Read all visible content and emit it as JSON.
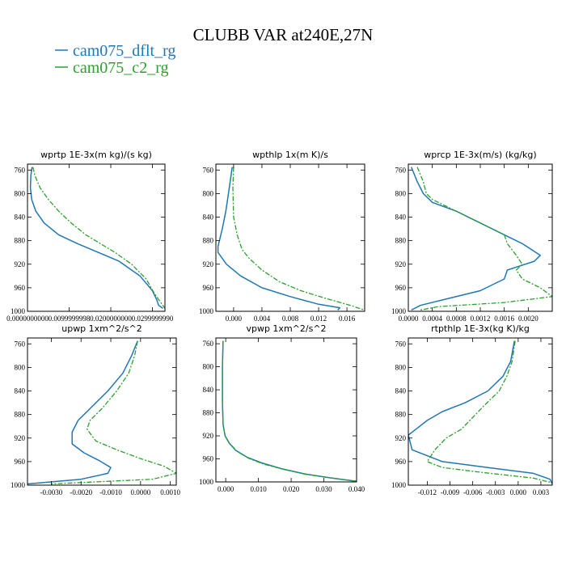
{
  "figure": {
    "title": "CLUBB VAR at240E,27N",
    "legend": [
      {
        "label": "cam075_dflt_rg",
        "color": "#1f77b4",
        "style": "solid"
      },
      {
        "label": "cam075_c2_rg",
        "color": "#2ca02c",
        "style": "dashdot"
      }
    ]
  },
  "chart_data": [
    {
      "type": "line",
      "title": "wprtp  1E-3x(m kg)/(s kg)",
      "xlim": [
        0.0,
        0.033
      ],
      "ylim": [
        1000,
        750
      ],
      "y_inverted": true,
      "xticks": [
        0.0,
        0.0099999998,
        0.02,
        0.029999999
      ],
      "xtick_labels": [
        "0.0000000000",
        "0.0099999998",
        "0.0200000000",
        "0.0299999990"
      ],
      "yticks": [
        760,
        800,
        840,
        880,
        920,
        960,
        1000
      ],
      "series": [
        {
          "name": "cam075_dflt_rg",
          "x": [
            0.0011,
            0.0008,
            0.0007,
            0.001,
            0.002,
            0.004,
            0.0075,
            0.012,
            0.017,
            0.022,
            0.027,
            0.03,
            0.031,
            0.0315,
            0.0325
          ],
          "y": [
            755,
            770,
            790,
            810,
            830,
            850,
            870,
            885,
            900,
            915,
            940,
            965,
            980,
            990,
            995
          ]
        },
        {
          "name": "cam075_c2_rg",
          "x": [
            0.0013,
            0.0018,
            0.003,
            0.005,
            0.0075,
            0.0105,
            0.014,
            0.0175,
            0.021,
            0.025,
            0.0285,
            0.0305,
            0.032,
            0.033
          ],
          "y": [
            755,
            770,
            790,
            810,
            830,
            850,
            870,
            885,
            900,
            920,
            945,
            970,
            985,
            995
          ]
        }
      ]
    },
    {
      "type": "line",
      "title": "wpthlp  1x(m K)/s",
      "xlim": [
        -0.0025,
        0.0185
      ],
      "ylim": [
        1000,
        750
      ],
      "y_inverted": true,
      "xticks": [
        0.0,
        0.004,
        0.008,
        0.012,
        0.016
      ],
      "xtick_labels": [
        "0.000",
        "0.004",
        "0.008",
        "0.012",
        "0.016"
      ],
      "yticks": [
        760,
        800,
        840,
        880,
        920,
        960,
        1000
      ],
      "series": [
        {
          "name": "cam075_dflt_rg",
          "x": [
            -0.0002,
            -0.0006,
            -0.0011,
            -0.0016,
            -0.0022,
            -0.0022,
            -0.001,
            0.001,
            0.004,
            0.008,
            0.012,
            0.015,
            0.0147
          ],
          "y": [
            755,
            790,
            830,
            860,
            890,
            900,
            920,
            940,
            960,
            975,
            988,
            994,
            998
          ]
        },
        {
          "name": "cam075_c2_rg",
          "x": [
            0.0,
            -0.0001,
            0.0,
            0.0005,
            0.0012,
            0.0022,
            0.004,
            0.0065,
            0.0095,
            0.013,
            0.0165,
            0.0185
          ],
          "y": [
            755,
            790,
            840,
            870,
            895,
            910,
            930,
            950,
            965,
            978,
            990,
            998
          ]
        }
      ]
    },
    {
      "type": "line",
      "title": "wprcp  1E-3x(m/s) (kg/kg)",
      "xlim": [
        0.0,
        0.0024
      ],
      "ylim": [
        1000,
        750
      ],
      "y_inverted": true,
      "xticks": [
        0.0,
        0.0004,
        0.0008,
        0.0012,
        0.0016,
        0.002
      ],
      "xtick_labels": [
        "0.0000",
        "0.0004",
        "0.0008",
        "0.0012",
        "0.0016",
        "0.0020"
      ],
      "yticks": [
        760,
        800,
        840,
        880,
        920,
        960,
        1000
      ],
      "series": [
        {
          "name": "cam075_dflt_rg",
          "x": [
            5e-05,
            0.00015,
            0.00025,
            0.0004,
            0.0008,
            0.0012,
            0.0016,
            0.0019,
            0.0022,
            0.0021,
            0.00165,
            0.0016,
            0.0012,
            0.0006,
            0.0002,
            5e-05
          ],
          "y": [
            755,
            780,
            800,
            815,
            830,
            850,
            870,
            885,
            905,
            915,
            930,
            945,
            965,
            980,
            990,
            998
          ]
        },
        {
          "name": "cam075_c2_rg",
          "x": [
            0.00015,
            0.00025,
            0.0003,
            0.0004,
            0.0008,
            0.0013,
            0.0016,
            0.00165,
            0.0018,
            0.0019,
            0.0018,
            0.0019,
            0.0022,
            0.0024,
            0.0016,
            0.0005,
            0.0002
          ],
          "y": [
            755,
            780,
            800,
            810,
            830,
            855,
            870,
            885,
            905,
            920,
            930,
            945,
            960,
            975,
            985,
            992,
            998
          ]
        }
      ]
    },
    {
      "type": "line",
      "title": "upwp  1xm^2/s^2",
      "xlim": [
        -0.0038,
        0.0012
      ],
      "ylim": [
        1000,
        750
      ],
      "y_inverted": true,
      "xticks": [
        -0.003,
        -0.002,
        -0.001,
        0.0,
        0.001
      ],
      "xtick_labels": [
        "-0.0030",
        "-0.0020",
        "-0.0010",
        "0.0000",
        "0.0010"
      ],
      "yticks": [
        760,
        800,
        840,
        880,
        920,
        960,
        1000
      ],
      "series": [
        {
          "name": "cam075_dflt_rg",
          "x": [
            -0.0001,
            -0.0003,
            -0.0006,
            -0.0011,
            -0.0017,
            -0.0021,
            -0.0023,
            -0.0023,
            -0.0019,
            -0.0014,
            -0.001,
            -0.0011,
            -0.002,
            -0.0038
          ],
          "y": [
            755,
            780,
            810,
            840,
            870,
            890,
            910,
            930,
            945,
            958,
            970,
            980,
            990,
            998
          ]
        },
        {
          "name": "cam075_c2_rg",
          "x": [
            -0.0001,
            -0.0002,
            -0.0004,
            -0.0008,
            -0.0013,
            -0.0017,
            -0.0018,
            -0.0015,
            -0.0008,
            0.0,
            0.0008,
            0.0012,
            0.0004,
            -0.003
          ],
          "y": [
            755,
            780,
            810,
            840,
            870,
            890,
            905,
            925,
            940,
            955,
            968,
            980,
            990,
            998
          ]
        }
      ]
    },
    {
      "type": "line",
      "title": "vpwp  1xm^2/s^2",
      "xlim": [
        -0.003,
        0.04
      ],
      "ylim": [
        1000,
        750
      ],
      "y_inverted": true,
      "xticks": [
        0.0,
        0.01,
        0.02,
        0.03,
        0.04
      ],
      "xtick_labels": [
        "0.000",
        "0.010",
        "0.020",
        "0.030",
        "0.040"
      ],
      "yticks": [
        760,
        800,
        840,
        880,
        920,
        960,
        1000
      ],
      "series": [
        {
          "name": "cam075_dflt_rg",
          "x": [
            -0.0008,
            -0.001,
            -0.001,
            -0.0008,
            -0.0002,
            0.001,
            0.003,
            0.0065,
            0.011,
            0.017,
            0.024,
            0.032,
            0.04
          ],
          "y": [
            755,
            800,
            860,
            900,
            920,
            932,
            945,
            957,
            967,
            977,
            986,
            993,
            999
          ]
        },
        {
          "name": "cam075_c2_rg",
          "x": [
            -0.0008,
            -0.001,
            -0.001,
            -0.0008,
            -0.0002,
            0.0012,
            0.0035,
            0.007,
            0.0115,
            0.0175,
            0.0245,
            0.032,
            0.04
          ],
          "y": [
            755,
            800,
            860,
            900,
            920,
            933,
            947,
            959,
            969,
            978,
            987,
            993,
            999
          ]
        }
      ]
    },
    {
      "type": "line",
      "title": "rtpthlp  1E-3x(kg K)/kg",
      "xlim": [
        -0.0145,
        0.0045
      ],
      "ylim": [
        1000,
        750
      ],
      "y_inverted": true,
      "xticks": [
        -0.012,
        -0.009,
        -0.006,
        -0.003,
        0.0,
        0.003
      ],
      "xtick_labels": [
        "-0.012",
        "-0.009",
        "-0.006",
        "-0.003",
        "0.000",
        "0.003"
      ],
      "yticks": [
        760,
        800,
        840,
        880,
        920,
        960,
        1000
      ],
      "series": [
        {
          "name": "cam075_dflt_rg",
          "x": [
            -0.0005,
            -0.001,
            -0.002,
            -0.004,
            -0.007,
            -0.01,
            -0.012,
            -0.013,
            -0.0145,
            -0.014,
            -0.01,
            -0.004,
            0.002,
            0.0042,
            0.0045
          ],
          "y": [
            755,
            790,
            815,
            840,
            860,
            875,
            890,
            900,
            915,
            940,
            960,
            970,
            980,
            990,
            998
          ]
        },
        {
          "name": "cam075_c2_rg",
          "x": [
            -0.0004,
            -0.0008,
            -0.0015,
            -0.0025,
            -0.0045,
            -0.006,
            -0.0075,
            -0.0095,
            -0.011,
            -0.012,
            -0.01,
            -0.005,
            0.002,
            0.0045
          ],
          "y": [
            755,
            790,
            815,
            840,
            865,
            885,
            905,
            920,
            940,
            960,
            970,
            978,
            988,
            996
          ]
        }
      ]
    }
  ]
}
